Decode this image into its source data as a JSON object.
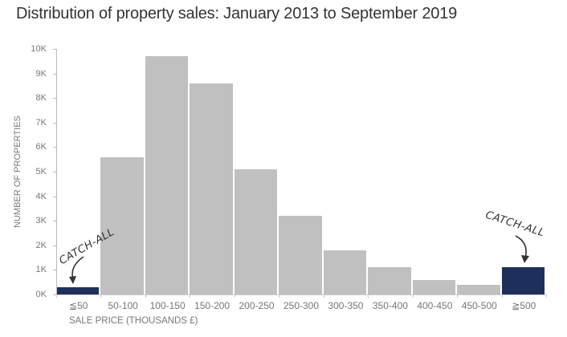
{
  "chart_data": {
    "type": "bar",
    "title": "Distribution of property sales: January 2013 to September 2019",
    "xlabel": "SALE PRICE (THOUSANDS £)",
    "ylabel": "NUMBER OF PROPERTIES",
    "ylim": [
      0,
      10000
    ],
    "yticks": [
      "0K",
      "1K",
      "2K",
      "3K",
      "4K",
      "5K",
      "6K",
      "7K",
      "8K",
      "9K",
      "10K"
    ],
    "categories": [
      "≦50",
      "50-100",
      "100-150",
      "150-200",
      "200-250",
      "250-300",
      "300-350",
      "350-400",
      "400-450",
      "450-500",
      "≧500"
    ],
    "values": [
      300,
      5600,
      9700,
      8600,
      5100,
      3200,
      1800,
      1100,
      600,
      400,
      1100
    ],
    "highlighted": [
      0,
      10
    ],
    "colors": {
      "default": "#c0c0c0",
      "highlight": "#1f2f5c"
    },
    "annotations": [
      {
        "text": "CATCH-ALL",
        "target": "≦50"
      },
      {
        "text": "CATCH-ALL",
        "target": "≧500"
      }
    ],
    "grid": false,
    "legend": "none"
  }
}
